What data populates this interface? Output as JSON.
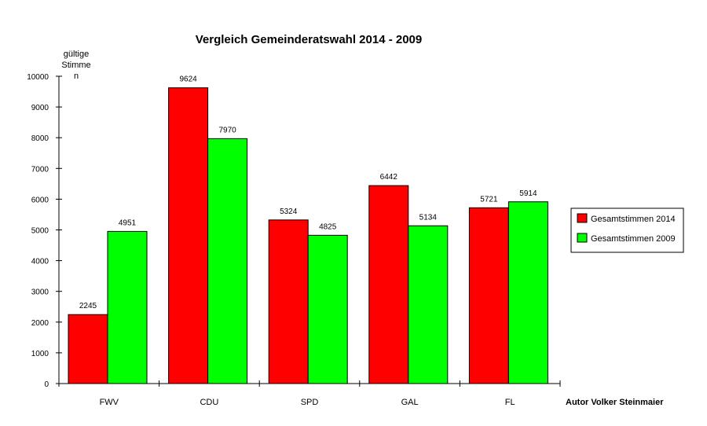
{
  "chart_data": {
    "type": "bar",
    "title": "Vergleich Gemeinderatswahl 2014 - 2009",
    "ylabel_lines": [
      "gültige",
      "Stimme",
      "n"
    ],
    "footer": "Autor Volker Steinmaier",
    "categories": [
      "FWV",
      "CDU",
      "SPD",
      "GAL",
      "FL"
    ],
    "series": [
      {
        "name": "Gesamtstimmen 2014",
        "color": "#ff0000",
        "values": [
          2245,
          9624,
          5324,
          6442,
          5721
        ]
      },
      {
        "name": "Gesamtstimmen 2009",
        "color": "#00ff00",
        "values": [
          4951,
          7970,
          4825,
          5134,
          5914
        ]
      }
    ],
    "ylim": [
      0,
      10000
    ],
    "yticks": [
      0,
      1000,
      2000,
      3000,
      4000,
      5000,
      6000,
      7000,
      8000,
      9000,
      10000
    ],
    "grid": false,
    "legend": "right"
  }
}
